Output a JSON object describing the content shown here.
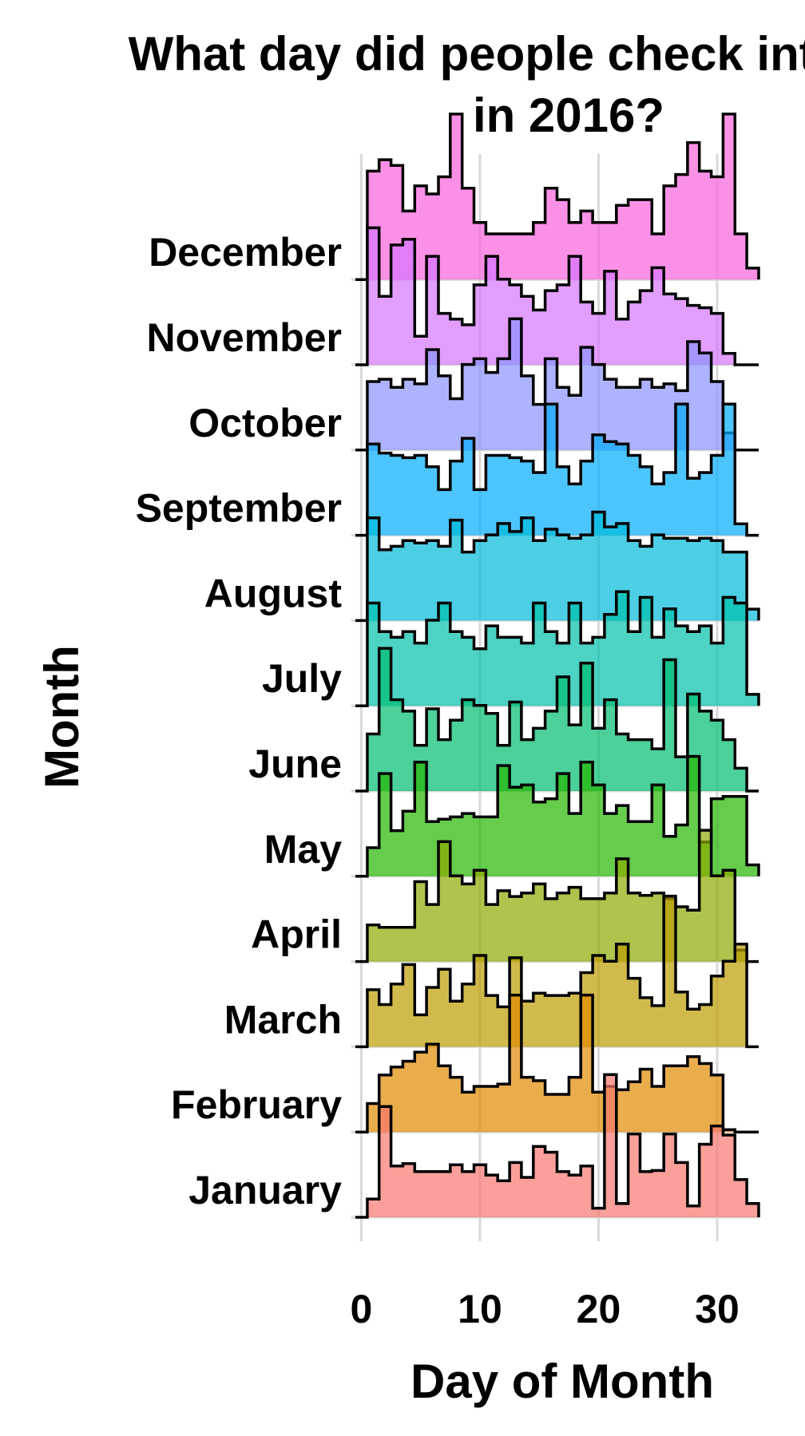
{
  "chart_data": {
    "type": "ridgeline-histogram",
    "title_lines": [
      "What day did people check into",
      "in 2016?"
    ],
    "xlabel": "Day of Month",
    "ylabel": "Month",
    "xlim": [
      -0.5,
      33.5
    ],
    "x_ticks": [
      "0",
      "10",
      "20",
      "30"
    ],
    "x_tick_values": [
      0,
      10,
      20,
      30
    ],
    "grid": true,
    "series": [
      {
        "name": "January",
        "color": "#F8766D",
        "values": [
          0.16,
          0.97,
          0.45,
          0.47,
          0.4,
          0.4,
          0.4,
          0.46,
          0.4,
          0.46,
          0.37,
          0.32,
          0.48,
          0.35,
          0.62,
          0.57,
          0.4,
          0.37,
          0.45,
          0.08,
          1.25,
          0.12,
          0.73,
          0.4,
          0.41,
          0.73,
          0.48,
          0.1,
          0.64,
          0.8,
          0.72,
          0.33,
          0.12
        ]
      },
      {
        "name": "February",
        "color": "#E18A00",
        "values": [
          0.25,
          0.5,
          0.57,
          0.62,
          0.7,
          0.77,
          0.58,
          0.48,
          0.35,
          0.4,
          0.4,
          0.42,
          1.2,
          0.48,
          0.45,
          0.33,
          0.33,
          0.48,
          1.2,
          0.35,
          0.4,
          0.37,
          0.44,
          0.55,
          0.4,
          0.58,
          0.58,
          0.66,
          0.6,
          0.5,
          0.02
        ]
      },
      {
        "name": "March",
        "color": "#BE9C00",
        "values": [
          0.5,
          0.37,
          0.55,
          0.72,
          0.28,
          0.52,
          0.68,
          0.4,
          0.55,
          0.8,
          0.45,
          0.35,
          0.78,
          0.4,
          0.47,
          0.45,
          0.45,
          0.47,
          0.65,
          0.8,
          0.75,
          0.9,
          0.6,
          0.43,
          0.36,
          1.32,
          0.48,
          0.33,
          0.37,
          0.62,
          0.75,
          0.9
        ]
      },
      {
        "name": "April",
        "color": "#8CAB00",
        "values": [
          0.32,
          0.3,
          0.3,
          0.3,
          0.7,
          0.5,
          1.05,
          0.75,
          0.68,
          0.8,
          0.5,
          0.62,
          0.57,
          0.6,
          0.68,
          0.55,
          0.6,
          0.65,
          0.55,
          0.55,
          0.6,
          0.9,
          0.6,
          0.58,
          0.6,
          0.55,
          0.48,
          0.45,
          1.15,
          0.75,
          0.8,
          0.1
        ]
      },
      {
        "name": "May",
        "color": "#24B700",
        "values": [
          0.25,
          0.9,
          0.4,
          0.57,
          1.0,
          0.48,
          0.5,
          0.52,
          0.55,
          0.52,
          0.52,
          0.97,
          0.78,
          0.8,
          0.65,
          0.68,
          0.9,
          0.55,
          1.0,
          0.8,
          0.55,
          0.62,
          0.48,
          0.48,
          0.8,
          0.35,
          0.45,
          1.05,
          0.3,
          0.68,
          0.7,
          0.7,
          0.1
        ]
      },
      {
        "name": "June",
        "color": "#00BE70",
        "values": [
          0.5,
          1.25,
          0.8,
          0.7,
          0.4,
          0.72,
          0.45,
          0.62,
          0.8,
          0.75,
          0.68,
          0.4,
          0.78,
          0.45,
          0.55,
          0.7,
          1.0,
          0.58,
          1.12,
          0.55,
          0.8,
          0.5,
          0.45,
          0.45,
          0.37,
          1.15,
          0.3,
          0.85,
          0.7,
          0.62,
          0.45,
          0.2
        ]
      },
      {
        "name": "July",
        "color": "#00C1AB",
        "values": [
          0.9,
          0.65,
          0.6,
          0.65,
          0.55,
          0.75,
          0.9,
          0.65,
          0.6,
          0.5,
          0.7,
          0.6,
          0.6,
          0.55,
          0.9,
          0.65,
          0.55,
          0.9,
          0.55,
          0.6,
          0.8,
          1.0,
          0.65,
          0.95,
          0.6,
          0.85,
          0.7,
          0.65,
          0.7,
          0.55,
          0.95,
          0.9,
          0.1
        ]
      },
      {
        "name": "August",
        "color": "#00BBDA",
        "values": [
          0.9,
          0.62,
          0.65,
          0.7,
          0.68,
          0.7,
          0.65,
          0.88,
          0.6,
          0.7,
          0.75,
          0.85,
          0.78,
          0.9,
          0.7,
          0.8,
          0.75,
          0.72,
          0.75,
          0.95,
          0.82,
          0.85,
          0.7,
          0.65,
          0.75,
          0.72,
          0.72,
          0.7,
          0.72,
          0.7,
          0.6,
          0.6,
          0.1
        ]
      },
      {
        "name": "September",
        "color": "#00ACFC",
        "values": [
          0.8,
          0.72,
          0.7,
          0.68,
          0.7,
          0.6,
          0.4,
          0.65,
          0.85,
          0.4,
          0.7,
          0.7,
          0.68,
          0.65,
          0.55,
          1.15,
          0.6,
          0.45,
          0.65,
          0.88,
          0.82,
          0.8,
          0.7,
          0.6,
          0.45,
          0.55,
          1.15,
          0.5,
          0.55,
          0.7,
          1.15,
          0.1
        ]
      },
      {
        "name": "October",
        "color": "#8B93FF",
        "values": [
          0.6,
          0.62,
          0.55,
          0.62,
          0.58,
          0.88,
          0.65,
          0.45,
          0.75,
          0.8,
          0.68,
          0.8,
          1.15,
          0.65,
          0.4,
          0.8,
          0.55,
          0.48,
          0.9,
          0.75,
          0.62,
          0.55,
          0.55,
          0.62,
          0.55,
          0.58,
          0.52,
          0.95,
          0.85,
          0.6,
          0.15
        ]
      },
      {
        "name": "November",
        "color": "#D575FE",
        "values": [
          1.2,
          0.6,
          1.05,
          1.1,
          0.25,
          0.95,
          0.45,
          0.4,
          0.35,
          0.7,
          0.95,
          0.75,
          0.7,
          0.6,
          0.48,
          0.65,
          0.7,
          0.95,
          0.55,
          0.45,
          0.82,
          0.4,
          0.55,
          0.65,
          0.85,
          0.62,
          0.58,
          0.52,
          0.5,
          0.45,
          0.1
        ]
      },
      {
        "name": "December",
        "color": "#F962DD",
        "values": [
          0.95,
          1.05,
          1.0,
          0.6,
          0.82,
          0.75,
          0.9,
          1.45,
          0.8,
          0.5,
          0.4,
          0.4,
          0.4,
          0.4,
          0.5,
          0.8,
          0.7,
          0.5,
          0.6,
          0.5,
          0.5,
          0.65,
          0.7,
          0.7,
          0.4,
          0.82,
          0.92,
          1.2,
          0.95,
          0.9,
          1.45,
          0.4,
          0.1
        ]
      }
    ]
  }
}
